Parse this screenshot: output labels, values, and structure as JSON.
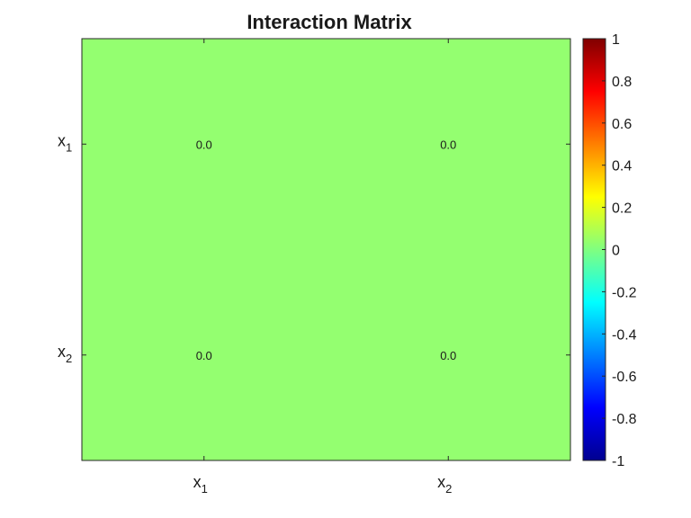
{
  "chart_data": {
    "type": "heatmap",
    "title": "Interaction Matrix",
    "x_tick_labels": [
      {
        "base": "x",
        "sub": "1"
      },
      {
        "base": "x",
        "sub": "2"
      }
    ],
    "y_tick_labels": [
      {
        "base": "x",
        "sub": "1"
      },
      {
        "base": "x",
        "sub": "2"
      }
    ],
    "values": [
      [
        0.0,
        0.0
      ],
      [
        0.0,
        0.0
      ]
    ],
    "cell_labels": [
      [
        "0.0",
        "0.0"
      ],
      [
        "0.0",
        "0.0"
      ]
    ],
    "colorbar": {
      "colormap": "jet",
      "range": [
        -1,
        1
      ],
      "ticks": [
        "1",
        "0.8",
        "0.6",
        "0.4",
        "0.2",
        "0",
        "-0.2",
        "-0.4",
        "-0.6",
        "-0.8",
        "-1"
      ],
      "tick_values": [
        1,
        0.8,
        0.6,
        0.4,
        0.2,
        0,
        -0.2,
        -0.4,
        -0.6,
        -0.8,
        -1
      ]
    },
    "cell_color": "#94ff70"
  }
}
